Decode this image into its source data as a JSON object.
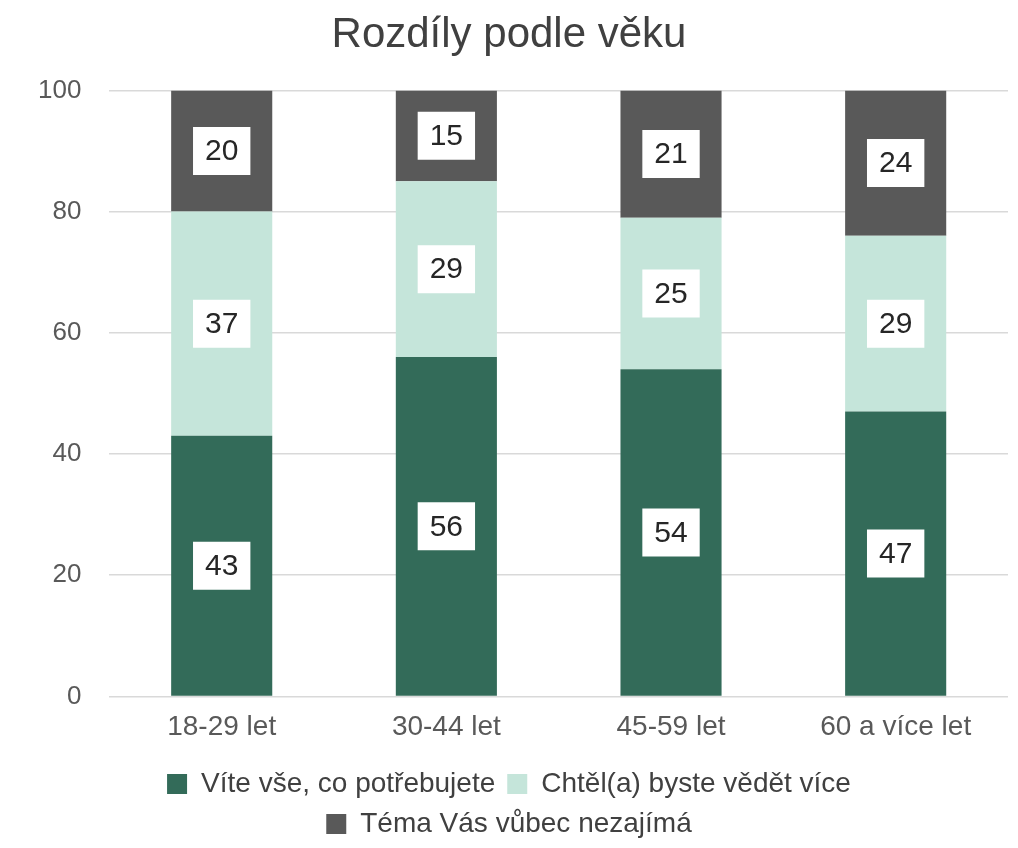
{
  "chart_data": {
    "type": "bar",
    "title": "Rozdíly podle věku",
    "categories": [
      "18-29 let",
      "30-44 let",
      "45-59 let",
      "60 a více let"
    ],
    "stacked": true,
    "series": [
      {
        "name": "Víte vše, co potřebujete",
        "color": "#336b59",
        "values": [
          43,
          56,
          54,
          47
        ]
      },
      {
        "name": "Chtěl(a) byste vědět více",
        "color": "#c5e5da",
        "values": [
          37,
          29,
          25,
          29
        ]
      },
      {
        "name": "Téma Vás vůbec nezajímá",
        "color": "#595959",
        "values": [
          20,
          15,
          21,
          24
        ]
      }
    ],
    "ylim": [
      0,
      100
    ],
    "yticks": [
      0,
      20,
      40,
      60,
      80,
      100
    ],
    "grid": "y",
    "legend": "bottom",
    "data_labels": true
  }
}
